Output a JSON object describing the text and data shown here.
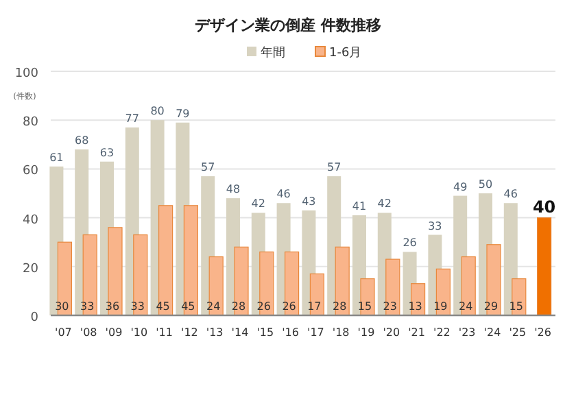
{
  "chart_data": {
    "type": "bar",
    "title": "デザイン業の倒産  件数推移",
    "ylabel": "(件数)",
    "categories": [
      "'07",
      "'08",
      "'09",
      "'10",
      "'11",
      "'12",
      "'13",
      "'14",
      "'15",
      "'16",
      "'17",
      "'18",
      "'19",
      "'20",
      "'21",
      "'22",
      "'23",
      "'24",
      "'25",
      "'26"
    ],
    "series": [
      {
        "name": "年間",
        "color": "#d8d3c0",
        "values": [
          61,
          68,
          63,
          77,
          80,
          79,
          57,
          48,
          42,
          46,
          43,
          57,
          41,
          42,
          26,
          33,
          49,
          50,
          46,
          null
        ]
      },
      {
        "name": "1-6月",
        "color": "#f9b48a",
        "colors": [
          "#f9b48a",
          "#f9b48a",
          "#f9b48a",
          "#f9b48a",
          "#f9b48a",
          "#f9b48a",
          "#f9b48a",
          "#f9b48a",
          "#f9b48a",
          "#f9b48a",
          "#f9b48a",
          "#f9b48a",
          "#f9b48a",
          "#f9b48a",
          "#f9b48a",
          "#f9b48a",
          "#f9b48a",
          "#f9b48a",
          "#f9b48a",
          "#f07000"
        ],
        "values": [
          30,
          33,
          36,
          33,
          45,
          45,
          24,
          28,
          26,
          26,
          17,
          28,
          15,
          23,
          13,
          19,
          24,
          29,
          15,
          40
        ]
      }
    ],
    "ylim": [
      0,
      100
    ],
    "yticks": [
      0,
      20,
      40,
      60,
      80,
      100
    ],
    "grid": "y",
    "legend": "top",
    "data_labels": true
  }
}
